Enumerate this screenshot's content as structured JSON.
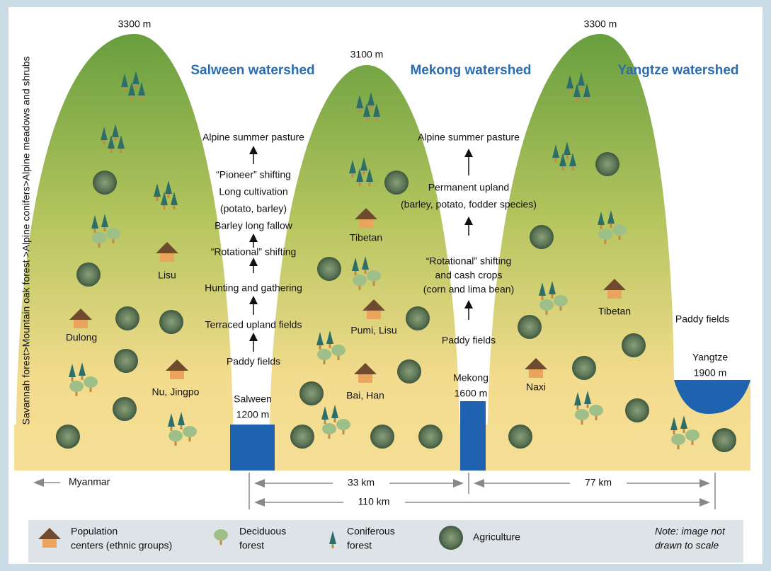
{
  "peaks": [
    "3300 m",
    "3100 m",
    "3300 m"
  ],
  "vertical_label": "Savannah forest>Mountain oak forest >Alpine conifers>Alpine meadows and shrubs",
  "watersheds": [
    "Salween watershed",
    "Mekong watershed",
    "Yangtze watershed"
  ],
  "salween_sequence": [
    "Alpine summer pasture",
    "“Pioneer” shifting",
    "Long cultivation",
    "(potato, barley)",
    "Barley long fallow",
    "“Rotational” shifting",
    "Hunting and gathering",
    "Terraced upland fields",
    "Paddy fields"
  ],
  "mekong_sequence": [
    "Alpine summer pasture",
    "Permanent upland",
    "(barley, potato, fodder species)",
    "“Rotational” shifting",
    "and cash crops",
    "(corn and lima bean)",
    "Paddy fields"
  ],
  "groups": [
    "Lisu",
    "Dulong",
    "Nu, Jingpo",
    "Tibetan",
    "Pumi, Lisu",
    "Bai, Han",
    "Naxi",
    "Tibetan"
  ],
  "rivers": [
    {
      "name": "Salween",
      "elevation": "1200 m"
    },
    {
      "name": "Mekong",
      "elevation": "1600 m"
    },
    {
      "name": "Yangtze",
      "elevation": "1900 m"
    }
  ],
  "right_paddy": "Paddy fields",
  "distances": {
    "country": "Myanmar",
    "salween_mekong": "33 km",
    "mekong_yangtze": "77 km",
    "total": "110 km"
  },
  "legend": {
    "population": [
      "Population",
      "centers (ethnic groups)"
    ],
    "deciduous": [
      "Deciduous",
      "forest"
    ],
    "coniferous": [
      "Coniferous",
      "forest"
    ],
    "agriculture": "Agriculture",
    "note": [
      "Note: image not",
      "drawn to scale"
    ]
  }
}
